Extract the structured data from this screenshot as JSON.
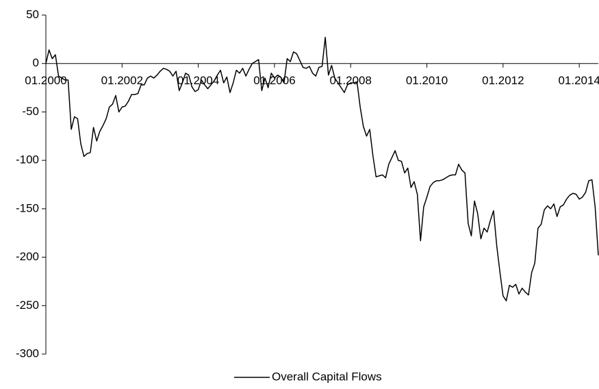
{
  "chart_data": {
    "type": "line",
    "categories": [
      "01.2000",
      null,
      null,
      null,
      null,
      null,
      null,
      null,
      null,
      null,
      null,
      null,
      null,
      null,
      null,
      null,
      null,
      null,
      null,
      null,
      null,
      null,
      null,
      null,
      "01.2002",
      null,
      null,
      null,
      null,
      null,
      null,
      null,
      null,
      null,
      null,
      null,
      null,
      null,
      null,
      null,
      null,
      null,
      null,
      null,
      null,
      null,
      null,
      null,
      "01.2004",
      null,
      null,
      null,
      null,
      null,
      null,
      null,
      null,
      null,
      null,
      null,
      null,
      null,
      null,
      null,
      null,
      null,
      null,
      null,
      null,
      null,
      null,
      null,
      "01.2006",
      null,
      null,
      null,
      null,
      null,
      null,
      null,
      null,
      null,
      null,
      null,
      null,
      null,
      null,
      null,
      null,
      null,
      null,
      null,
      null,
      null,
      null,
      null,
      "01.2008",
      null,
      null,
      null,
      null,
      null,
      null,
      null,
      null,
      null,
      null,
      null,
      null,
      null,
      null,
      null,
      null,
      null,
      null,
      null,
      null,
      null,
      null,
      null,
      "01.2010",
      null,
      null,
      null,
      null,
      null,
      null,
      null,
      null,
      null,
      null,
      null,
      null,
      null,
      null,
      null,
      null,
      null,
      null,
      null,
      null,
      null,
      null,
      null,
      "01.2012",
      null,
      null,
      null,
      null,
      null,
      null,
      null,
      null,
      null,
      null,
      null,
      null,
      null,
      null,
      null,
      null,
      null,
      null,
      null,
      null,
      null,
      null,
      null,
      "01.2014",
      null,
      null,
      null,
      null,
      null,
      null
    ],
    "series": [
      {
        "name": "Overall Capital Flows",
        "color": "#000000",
        "values": [
          0,
          14,
          5,
          9,
          -13,
          -15,
          -17,
          -17,
          -68,
          -55,
          -57,
          -83,
          -96,
          -93,
          -92,
          -66,
          -80,
          -70,
          -64,
          -57,
          -45,
          -42,
          -33,
          -50,
          -45,
          -44,
          -39,
          -32,
          -32,
          -31,
          -22,
          -22,
          -15,
          -13,
          -15,
          -12,
          -8,
          -5,
          -6,
          -8,
          -13,
          -8,
          -28,
          -20,
          -10,
          -12,
          -24,
          -29,
          -27,
          -17,
          -22,
          -26,
          -22,
          -18,
          -12,
          -7,
          -20,
          -14,
          -30,
          -20,
          -7,
          -10,
          -5,
          -13,
          -6,
          0,
          2,
          4,
          -28,
          -15,
          -25,
          -10,
          -15,
          -12,
          -14,
          -20,
          5,
          2,
          12,
          10,
          3,
          -4,
          -5,
          -3,
          -10,
          -13,
          -4,
          -3,
          27,
          -12,
          -2,
          -15,
          -20,
          -25,
          -30,
          -22,
          -20,
          -20,
          -19,
          -45,
          -65,
          -75,
          -68,
          -95,
          -117,
          -116,
          -115,
          -118,
          -104,
          -97,
          -90,
          -100,
          -101,
          -113,
          -108,
          -128,
          -122,
          -135,
          -183,
          -148,
          -138,
          -127,
          -123,
          -121,
          -121,
          -120,
          -118,
          -116,
          -115,
          -115,
          -104,
          -110,
          -113,
          -165,
          -178,
          -142,
          -155,
          -181,
          -170,
          -174,
          -162,
          -152,
          -188,
          -215,
          -240,
          -245,
          -229,
          -231,
          -228,
          -238,
          -232,
          -236,
          -239,
          -216,
          -206,
          -170,
          -166,
          -151,
          -147,
          -150,
          -145,
          -158,
          -148,
          -146,
          -140,
          -136,
          -134,
          -135,
          -140,
          -138,
          -133,
          -121,
          -120,
          -148,
          -198
        ]
      }
    ],
    "ylim": [
      -300,
      50
    ],
    "yticks": [
      50,
      0,
      -50,
      -100,
      -150,
      -200,
      -250,
      -300
    ],
    "legend": "bottom"
  }
}
